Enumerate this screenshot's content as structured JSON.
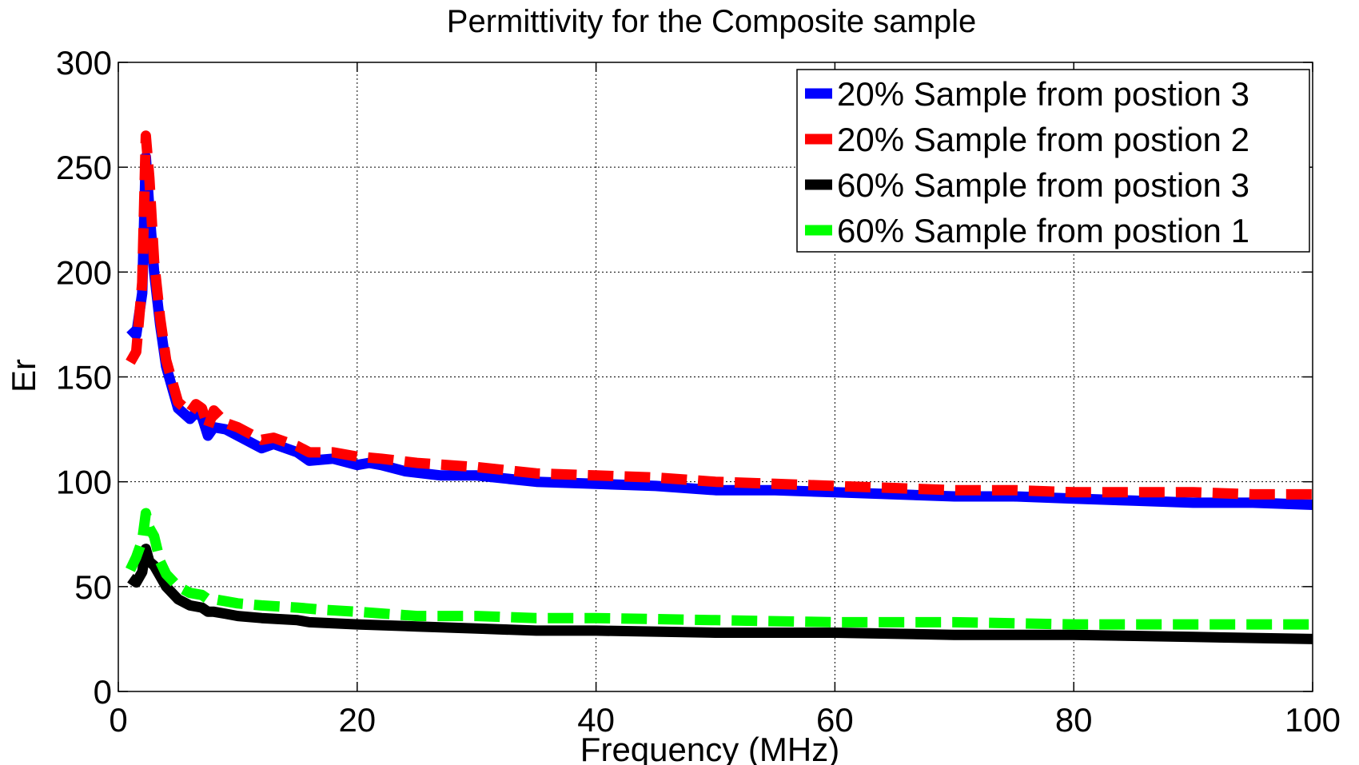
{
  "chart_data": {
    "type": "line",
    "title": "Permittivity for the Composite sample",
    "xlabel": "Frequency (MHz)",
    "ylabel": "Er",
    "xlim": [
      0,
      100
    ],
    "ylim": [
      0,
      300
    ],
    "xticks": [
      0,
      20,
      40,
      60,
      80,
      100
    ],
    "yticks": [
      0,
      50,
      100,
      150,
      200,
      250,
      300
    ],
    "grid": true,
    "legend_position": "top-right",
    "series": [
      {
        "name": "20% Sample from postion 3",
        "color": "#0000ff",
        "style": "solid",
        "x": [
          1,
          1.5,
          2,
          2.3,
          2.6,
          3,
          3.5,
          4,
          5,
          6,
          6.5,
          7,
          7.5,
          8,
          9,
          10,
          12,
          13,
          15,
          16,
          18,
          20,
          21,
          22,
          24,
          27,
          30,
          35,
          40,
          45,
          50,
          55,
          60,
          65,
          70,
          75,
          80,
          85,
          90,
          95,
          100
        ],
        "y": [
          173,
          170,
          190,
          255,
          230,
          200,
          175,
          155,
          135,
          130,
          133,
          131,
          122,
          126,
          125,
          122,
          116,
          118,
          114,
          110,
          111,
          108,
          109,
          108,
          105,
          103,
          103,
          100,
          99,
          98,
          96,
          96,
          95,
          94,
          93,
          93,
          92,
          91,
          90,
          90,
          89
        ]
      },
      {
        "name": "20% Sample from postion 2",
        "color": "#ff0000",
        "style": "dashed",
        "x": [
          1,
          1.5,
          2,
          2.3,
          2.6,
          3,
          3.5,
          4,
          5,
          6,
          6.5,
          7,
          7.5,
          8,
          9,
          10,
          12,
          13,
          15,
          16,
          18,
          20,
          22,
          25,
          30,
          35,
          40,
          45,
          50,
          55,
          60,
          65,
          70,
          75,
          80,
          85,
          90,
          95,
          100
        ],
        "y": [
          157,
          162,
          195,
          265,
          245,
          205,
          178,
          158,
          138,
          133,
          137,
          135,
          126,
          134,
          128,
          126,
          120,
          121,
          117,
          114,
          114,
          112,
          111,
          109,
          107,
          104,
          103,
          102,
          100,
          99,
          98,
          97,
          96,
          96,
          95,
          95,
          95,
          94,
          94
        ]
      },
      {
        "name": "60% Sample from postion 3",
        "color": "#000000",
        "style": "solid",
        "x": [
          1,
          1.5,
          2,
          2.3,
          2.6,
          3,
          3.5,
          4,
          5,
          6,
          7,
          7.5,
          8,
          9,
          10,
          12,
          15,
          16,
          20,
          25,
          30,
          35,
          40,
          50,
          60,
          70,
          80,
          90,
          100
        ],
        "y": [
          54,
          52,
          57,
          68,
          62,
          60,
          55,
          50,
          44,
          41,
          40,
          38,
          38,
          37,
          36,
          35,
          34,
          33,
          32,
          31,
          30,
          29,
          29,
          28,
          28,
          27,
          27,
          26,
          25
        ]
      },
      {
        "name": "60% Sample from postion 1",
        "color": "#00ff00",
        "style": "dashed",
        "x": [
          1,
          1.5,
          2,
          2.3,
          2.6,
          3,
          3.5,
          4,
          5,
          6,
          7,
          7.5,
          8,
          9,
          10,
          12,
          15,
          17,
          20,
          25,
          30,
          35,
          40,
          50,
          60,
          70,
          80,
          90,
          100
        ],
        "y": [
          58,
          64,
          72,
          85,
          78,
          74,
          62,
          56,
          50,
          47,
          46,
          44,
          44,
          43,
          42,
          41,
          40,
          39,
          38,
          36,
          36,
          35,
          35,
          34,
          33,
          33,
          32,
          32,
          32
        ]
      }
    ]
  }
}
